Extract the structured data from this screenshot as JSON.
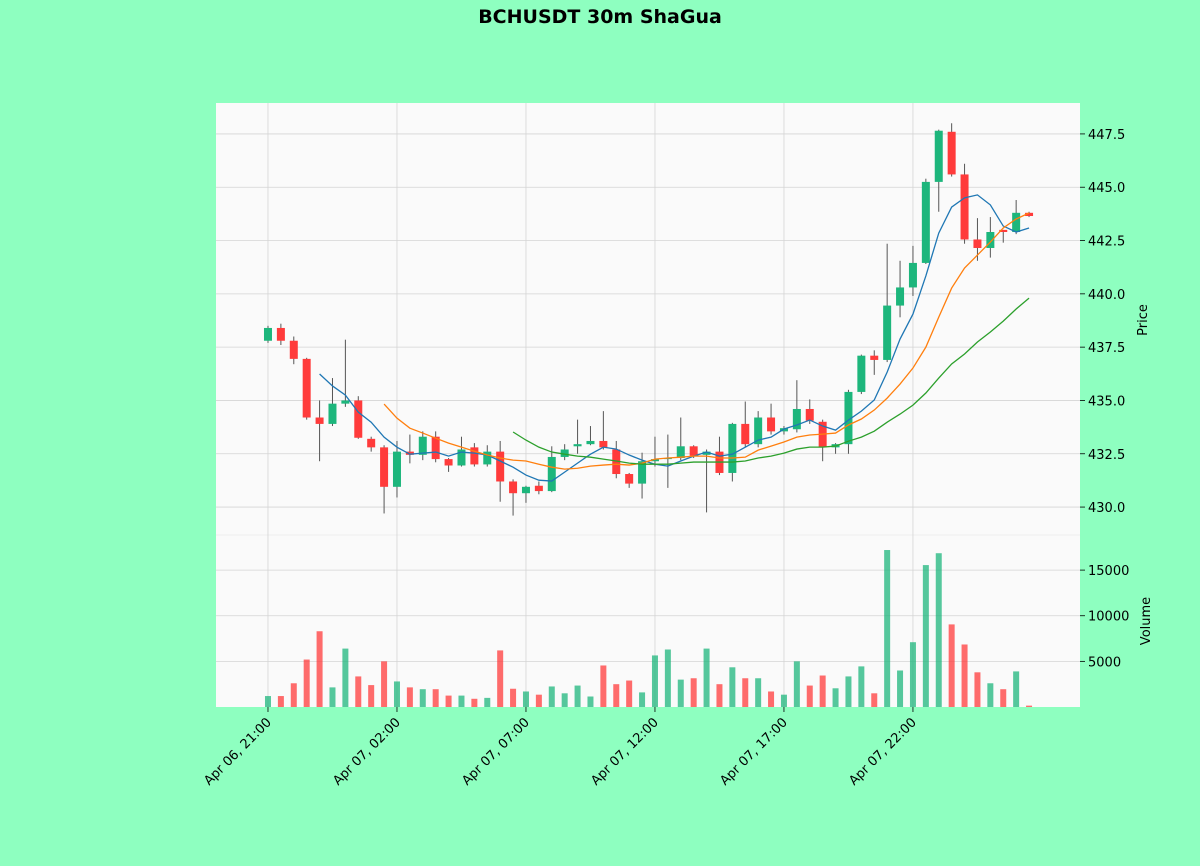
{
  "chart_data": {
    "type": "candlestick",
    "title": "BCHUSDT 30m ShaGua",
    "ylabel": "Price",
    "volume_label": "Volume",
    "categories": [
      "Apr 06, 21:00",
      null,
      null,
      null,
      null,
      null,
      null,
      null,
      null,
      null,
      "Apr 07, 02:00",
      null,
      null,
      null,
      null,
      null,
      null,
      null,
      null,
      null,
      "Apr 07, 07:00",
      null,
      null,
      null,
      null,
      null,
      null,
      null,
      null,
      null,
      "Apr 07, 12:00",
      null,
      null,
      null,
      null,
      null,
      null,
      null,
      null,
      null,
      "Apr 07, 17:00",
      null,
      null,
      null,
      null,
      null,
      null,
      null,
      null,
      null,
      "Apr 07, 22:00",
      null,
      null,
      null,
      null,
      null,
      null,
      null,
      null,
      null
    ],
    "open": [
      437.8,
      438.4,
      437.8,
      436.95,
      434.2,
      433.9,
      434.85,
      435.0,
      433.2,
      432.8,
      430.95,
      432.6,
      432.45,
      433.3,
      432.25,
      431.95,
      432.8,
      432.0,
      432.6,
      431.2,
      430.65,
      431.0,
      430.75,
      432.35,
      432.85,
      432.95,
      433.1,
      432.7,
      431.55,
      431.1,
      432.15,
      432.25,
      432.3,
      432.85,
      432.45,
      432.6,
      431.6,
      433.9,
      432.95,
      434.2,
      433.55,
      433.65,
      434.6,
      434.0,
      432.8,
      432.95,
      435.4,
      437.1,
      436.9,
      439.45,
      440.3,
      441.45,
      445.25,
      447.6,
      445.6,
      442.55,
      442.15,
      443.0,
      442.9,
      443.8
    ],
    "high": [
      438.5,
      438.6,
      438.0,
      437.0,
      435.0,
      436.05,
      437.85,
      435.2,
      433.3,
      432.9,
      433.1,
      433.4,
      433.55,
      433.55,
      432.3,
      433.3,
      433.0,
      432.9,
      433.1,
      431.3,
      431.0,
      431.2,
      432.85,
      432.95,
      434.1,
      433.8,
      434.5,
      433.1,
      431.6,
      432.55,
      433.3,
      433.4,
      434.2,
      432.9,
      432.7,
      433.3,
      433.95,
      434.95,
      434.5,
      434.85,
      433.8,
      435.95,
      435.05,
      434.1,
      433.0,
      435.5,
      437.15,
      437.35,
      442.35,
      441.55,
      442.25,
      445.4,
      447.7,
      448.0,
      446.1,
      443.55,
      443.6,
      443.0,
      444.4,
      443.85
    ],
    "low": [
      437.7,
      437.6,
      436.7,
      434.1,
      432.15,
      433.8,
      434.7,
      433.2,
      432.6,
      429.7,
      430.45,
      432.05,
      432.2,
      432.1,
      431.65,
      431.9,
      431.9,
      431.9,
      430.25,
      429.6,
      430.2,
      430.6,
      430.7,
      432.2,
      432.5,
      432.9,
      432.7,
      431.35,
      430.9,
      430.4,
      431.9,
      430.9,
      432.2,
      432.3,
      429.75,
      431.5,
      431.2,
      432.8,
      432.8,
      433.4,
      433.4,
      433.5,
      433.9,
      432.15,
      432.5,
      432.5,
      435.3,
      436.2,
      436.8,
      438.9,
      439.9,
      441.4,
      443.85,
      445.5,
      442.35,
      441.55,
      441.7,
      442.4,
      442.8,
      443.6
    ],
    "close": [
      438.4,
      437.8,
      436.95,
      434.2,
      433.9,
      434.85,
      435.0,
      433.25,
      432.8,
      430.95,
      432.6,
      432.45,
      433.3,
      432.25,
      431.95,
      432.7,
      432.0,
      432.6,
      431.2,
      430.65,
      430.95,
      430.75,
      432.35,
      432.7,
      432.95,
      433.1,
      432.8,
      431.55,
      431.1,
      432.15,
      432.25,
      432.3,
      432.85,
      432.4,
      432.6,
      431.6,
      433.9,
      432.95,
      434.2,
      433.55,
      433.7,
      434.6,
      434.05,
      432.8,
      432.95,
      435.4,
      437.1,
      436.9,
      439.45,
      440.3,
      441.45,
      445.25,
      447.65,
      445.6,
      442.55,
      442.15,
      442.9,
      442.9,
      443.8,
      443.65
    ],
    "volume": [
      1200,
      1200,
      2600,
      5200,
      8300,
      2150,
      6400,
      3350,
      2400,
      5000,
      2800,
      2150,
      1950,
      1950,
      1250,
      1250,
      900,
      1000,
      6200,
      2000,
      1700,
      1350,
      2250,
      1500,
      2350,
      1150,
      4550,
      2500,
      2900,
      1600,
      5650,
      6300,
      3000,
      3150,
      6400,
      2500,
      4350,
      3150,
      3150,
      1700,
      1350,
      5000,
      2350,
      3450,
      2050,
      3350,
      4450,
      1500,
      17200,
      4000,
      7100,
      15550,
      16850,
      9050,
      6850,
      3800,
      2600,
      1950,
      3900,
      150
    ],
    "up_color": "#1db67c",
    "down_color": "#ff3b3b",
    "moving_averages": [
      {
        "color": "#1f77b4",
        "values": [
          null,
          null,
          null,
          null,
          436.24,
          435.68,
          435.25,
          434.45,
          433.98,
          433.28,
          432.81,
          432.48,
          432.53,
          432.58,
          432.39,
          432.58,
          432.53,
          432.44,
          432.16,
          431.87,
          431.5,
          431.26,
          431.22,
          431.64,
          432.06,
          432.48,
          432.81,
          432.72,
          432.44,
          432.2,
          432.01,
          431.92,
          432.16,
          432.39,
          432.58,
          432.39,
          432.48,
          432.81,
          433.14,
          433.28,
          433.66,
          433.85,
          434.08,
          433.8,
          433.61,
          434.08,
          434.5,
          435.02,
          436.33,
          437.88,
          439.05,
          440.84,
          442.85,
          444.07,
          444.5,
          444.64,
          444.17,
          443.18,
          442.9,
          443.09
        ]
      },
      {
        "color": "#ff7f0e",
        "values": [
          null,
          null,
          null,
          null,
          null,
          null,
          null,
          null,
          null,
          434.83,
          434.17,
          433.7,
          433.47,
          433.23,
          433.0,
          432.81,
          432.62,
          432.44,
          432.3,
          432.2,
          432.16,
          432.01,
          431.87,
          431.78,
          431.82,
          431.92,
          431.97,
          432.01,
          431.97,
          432.06,
          432.25,
          432.3,
          432.34,
          432.39,
          432.39,
          432.3,
          432.3,
          432.34,
          432.67,
          432.86,
          433.05,
          433.28,
          433.38,
          433.42,
          433.47,
          433.85,
          434.13,
          434.55,
          435.11,
          435.77,
          436.52,
          437.5,
          438.91,
          440.27,
          441.21,
          441.82,
          442.43,
          443.09,
          443.51,
          443.79
        ]
      },
      {
        "color": "#2ca02c",
        "values": [
          null,
          null,
          null,
          null,
          null,
          null,
          null,
          null,
          null,
          null,
          null,
          null,
          null,
          null,
          null,
          null,
          null,
          null,
          null,
          433.52,
          433.14,
          432.81,
          432.58,
          432.48,
          432.39,
          432.34,
          432.25,
          432.16,
          432.06,
          432.01,
          432.01,
          432.01,
          432.06,
          432.11,
          432.11,
          432.11,
          432.11,
          432.16,
          432.3,
          432.39,
          432.53,
          432.72,
          432.81,
          432.81,
          432.86,
          433.09,
          433.28,
          433.56,
          433.98,
          434.36,
          434.78,
          435.35,
          436.05,
          436.71,
          437.18,
          437.74,
          438.21,
          438.72,
          439.29,
          439.8
        ]
      }
    ],
    "xlim": [
      -4.03,
      62.95
    ],
    "ylim": [
      428.69,
      448.95
    ],
    "yticks": [
      {
        "value": 430,
        "label": "430.0"
      },
      432.5,
      {
        "value": 435,
        "label": "435.0"
      },
      437.5,
      {
        "value": 440,
        "label": "440.0"
      },
      442.5,
      {
        "value": 445,
        "label": "445.0"
      },
      447.5
    ],
    "volume_ylim": [
      0,
      18846
    ],
    "volume_yticks": [
      5000,
      10000,
      15000
    ],
    "grid": true
  }
}
